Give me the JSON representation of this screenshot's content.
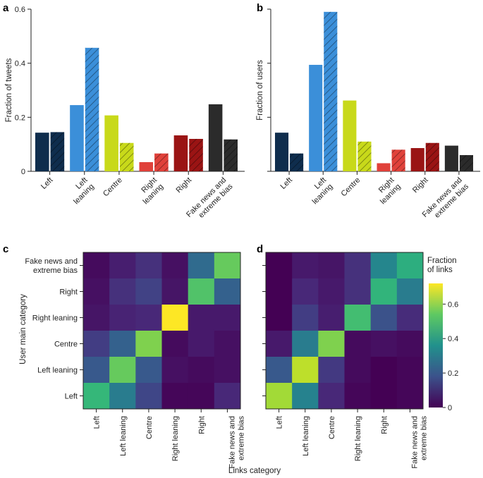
{
  "panels": [
    "a",
    "b",
    "c",
    "d"
  ],
  "x_title": "Links category",
  "chart_data": [
    {
      "type": "bar",
      "panel": "a",
      "ylabel": "Fraction of tweets",
      "ylim": [
        0,
        0.6
      ],
      "yticks": [
        0,
        0.2,
        0.4,
        0.6
      ],
      "ytick_labels": [
        "0",
        "0.2",
        "0.4",
        "0.6"
      ],
      "categories": [
        "Left",
        "Left leaning",
        "Centre",
        "Right leaning",
        "Right",
        "Fake news and extreme bias"
      ],
      "category_labels": [
        [
          "Left"
        ],
        [
          "Left",
          "leaning"
        ],
        [
          "Centre"
        ],
        [
          "Right",
          "leaning"
        ],
        [
          "Right"
        ],
        [
          "Fake news and",
          "extreme bias"
        ]
      ],
      "colors": [
        "#0f2d4d",
        "#3b8fd9",
        "#c8d91a",
        "#e0413a",
        "#9a1414",
        "#2b2b2b"
      ],
      "series": [
        {
          "style": "solid",
          "values": [
            0.143,
            0.245,
            0.207,
            0.034,
            0.133,
            0.248
          ]
        },
        {
          "style": "hatched",
          "values": [
            0.145,
            0.457,
            0.105,
            0.066,
            0.12,
            0.118
          ]
        }
      ]
    },
    {
      "type": "bar",
      "panel": "b",
      "ylabel": "Fraction of users",
      "ylim": [
        0,
        0.6
      ],
      "yticks": [
        0,
        0.2,
        0.4,
        0.6
      ],
      "ytick_labels": [
        "",
        "",
        "",
        ""
      ],
      "categories": [
        "Left",
        "Left leaning",
        "Centre",
        "Right leaning",
        "Right",
        "Fake news and extreme bias"
      ],
      "category_labels": [
        [
          "Left"
        ],
        [
          "Left",
          "leaning"
        ],
        [
          "Centre"
        ],
        [
          "Right",
          "leaning"
        ],
        [
          "Right"
        ],
        [
          "Fake news and",
          "extreme bias"
        ]
      ],
      "colors": [
        "#0f2d4d",
        "#3b8fd9",
        "#c8d91a",
        "#e0413a",
        "#9a1414",
        "#2b2b2b"
      ],
      "series": [
        {
          "style": "solid",
          "values": [
            0.143,
            0.394,
            0.262,
            0.03,
            0.086,
            0.095
          ]
        },
        {
          "style": "hatched",
          "values": [
            0.066,
            0.59,
            0.11,
            0.08,
            0.105,
            0.06
          ]
        }
      ]
    },
    {
      "type": "heatmap",
      "panel": "c",
      "ylabel": "User main category",
      "rows": [
        "Fake news and extreme bias",
        "Right",
        "Right leaning",
        "Centre",
        "Left leaning",
        "Left"
      ],
      "row_labels": [
        [
          "Fake news and",
          "extreme bias"
        ],
        [
          "Right"
        ],
        [
          "Right leaning"
        ],
        [
          "Centre"
        ],
        [
          "Left leaning"
        ],
        [
          "Left"
        ]
      ],
      "columns": [
        "Left",
        "Left leaning",
        "Centre",
        "Right leaning",
        "Right",
        "Fake news and extreme bias"
      ],
      "column_labels": [
        [
          "Left"
        ],
        [
          "Left leaning"
        ],
        [
          "Centre"
        ],
        [
          "Right leaning"
        ],
        [
          "Right"
        ],
        [
          "Fake news and",
          "extreme bias"
        ]
      ],
      "values": [
        [
          0.02,
          0.06,
          0.1,
          0.03,
          0.25,
          0.55
        ],
        [
          0.03,
          0.1,
          0.14,
          0.04,
          0.52,
          0.22
        ],
        [
          0.04,
          0.07,
          0.08,
          0.72,
          0.05,
          0.05
        ],
        [
          0.13,
          0.22,
          0.58,
          0.02,
          0.05,
          0.03
        ],
        [
          0.2,
          0.55,
          0.2,
          0.03,
          0.02,
          0.03
        ],
        [
          0.48,
          0.3,
          0.15,
          0.01,
          0.01,
          0.08
        ]
      ],
      "vmin": 0,
      "vmax": 0.72
    },
    {
      "type": "heatmap",
      "panel": "d",
      "rows": [
        "Fake news and extreme bias",
        "Right",
        "Right leaning",
        "Centre",
        "Left leaning",
        "Left"
      ],
      "columns": [
        "Left",
        "Left leaning",
        "Centre",
        "Right leaning",
        "Right",
        "Fake news and extreme bias"
      ],
      "column_labels": [
        [
          "Left"
        ],
        [
          "Left leaning"
        ],
        [
          "Centre"
        ],
        [
          "Right leaning"
        ],
        [
          "Right"
        ],
        [
          "Fake news and",
          "extreme bias"
        ]
      ],
      "values": [
        [
          0.0,
          0.05,
          0.04,
          0.1,
          0.33,
          0.45
        ],
        [
          0.0,
          0.08,
          0.05,
          0.1,
          0.47,
          0.3
        ],
        [
          0.0,
          0.13,
          0.06,
          0.5,
          0.18,
          0.09
        ],
        [
          0.05,
          0.3,
          0.58,
          0.02,
          0.03,
          0.02
        ],
        [
          0.2,
          0.65,
          0.12,
          0.02,
          0.0,
          0.01
        ],
        [
          0.62,
          0.32,
          0.08,
          0.01,
          0.0,
          0.01
        ]
      ],
      "vmin": 0,
      "vmax": 0.72,
      "colorbar": {
        "title": [
          "Fraction",
          "of links"
        ],
        "ticks": [
          0,
          0.2,
          0.4,
          0.6
        ],
        "tick_labels": [
          "0",
          "0.2",
          "0.4",
          "0.6"
        ]
      }
    }
  ]
}
